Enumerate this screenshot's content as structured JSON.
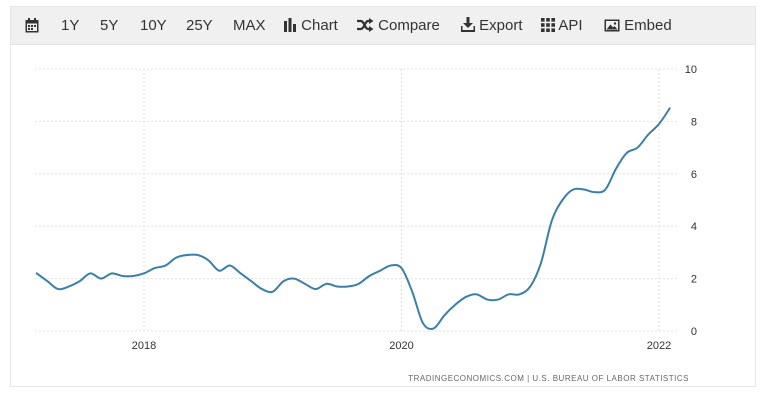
{
  "toolbar": {
    "calendar_icon": "calendar-icon",
    "ranges": [
      "1Y",
      "5Y",
      "10Y",
      "25Y",
      "MAX"
    ],
    "chart_label": "Chart",
    "compare_label": "Compare",
    "export_label": "Export",
    "api_label": "API",
    "embed_label": "Embed"
  },
  "source": "TRADINGECONOMICS.COM | U.S. BUREAU OF LABOR STATISTICS",
  "colors": {
    "line": "#3a7fa7",
    "grid": "#e2e2e2",
    "toolbar_bg": "#f0f0f0"
  },
  "chart_data": {
    "type": "line",
    "title": "",
    "xlabel": "",
    "ylabel": "",
    "xlim": [
      "2017-03",
      "2022-03"
    ],
    "ylim": [
      0,
      10
    ],
    "yticks": [
      0,
      2,
      4,
      6,
      8,
      10
    ],
    "xticks": [
      "2018",
      "2020",
      "2022"
    ],
    "y_axis_side": "right",
    "grid": "dashed",
    "legend": "none",
    "series": [
      {
        "x": [
          "2017-03",
          "2017-04",
          "2017-05",
          "2017-06",
          "2017-07",
          "2017-08",
          "2017-09",
          "2017-10",
          "2017-11",
          "2017-12",
          "2018-01",
          "2018-02",
          "2018-03",
          "2018-04",
          "2018-05",
          "2018-06",
          "2018-07",
          "2018-08",
          "2018-09",
          "2018-10",
          "2018-11",
          "2018-12",
          "2019-01",
          "2019-02",
          "2019-03",
          "2019-04",
          "2019-05",
          "2019-06",
          "2019-07",
          "2019-08",
          "2019-09",
          "2019-10",
          "2019-11",
          "2019-12",
          "2020-01",
          "2020-02",
          "2020-03",
          "2020-04",
          "2020-05",
          "2020-06",
          "2020-07",
          "2020-08",
          "2020-09",
          "2020-10",
          "2020-11",
          "2020-12",
          "2021-01",
          "2021-02",
          "2021-03",
          "2021-04",
          "2021-05",
          "2021-06",
          "2021-07",
          "2021-08",
          "2021-09",
          "2021-10",
          "2021-11",
          "2021-12",
          "2022-01",
          "2022-02"
        ],
        "values": [
          2.2,
          1.9,
          1.6,
          1.7,
          1.9,
          2.2,
          2.0,
          2.2,
          2.1,
          2.1,
          2.2,
          2.4,
          2.5,
          2.8,
          2.9,
          2.9,
          2.7,
          2.3,
          2.5,
          2.2,
          1.9,
          1.6,
          1.5,
          1.9,
          2.0,
          1.8,
          1.6,
          1.8,
          1.7,
          1.7,
          1.8,
          2.1,
          2.3,
          2.5,
          2.4,
          1.5,
          0.3,
          0.1,
          0.6,
          1.0,
          1.3,
          1.4,
          1.2,
          1.2,
          1.4,
          1.4,
          1.7,
          2.6,
          4.2,
          5.0,
          5.4,
          5.4,
          5.3,
          5.4,
          6.2,
          6.8,
          7.0,
          7.5,
          7.9,
          8.5
        ]
      }
    ]
  }
}
